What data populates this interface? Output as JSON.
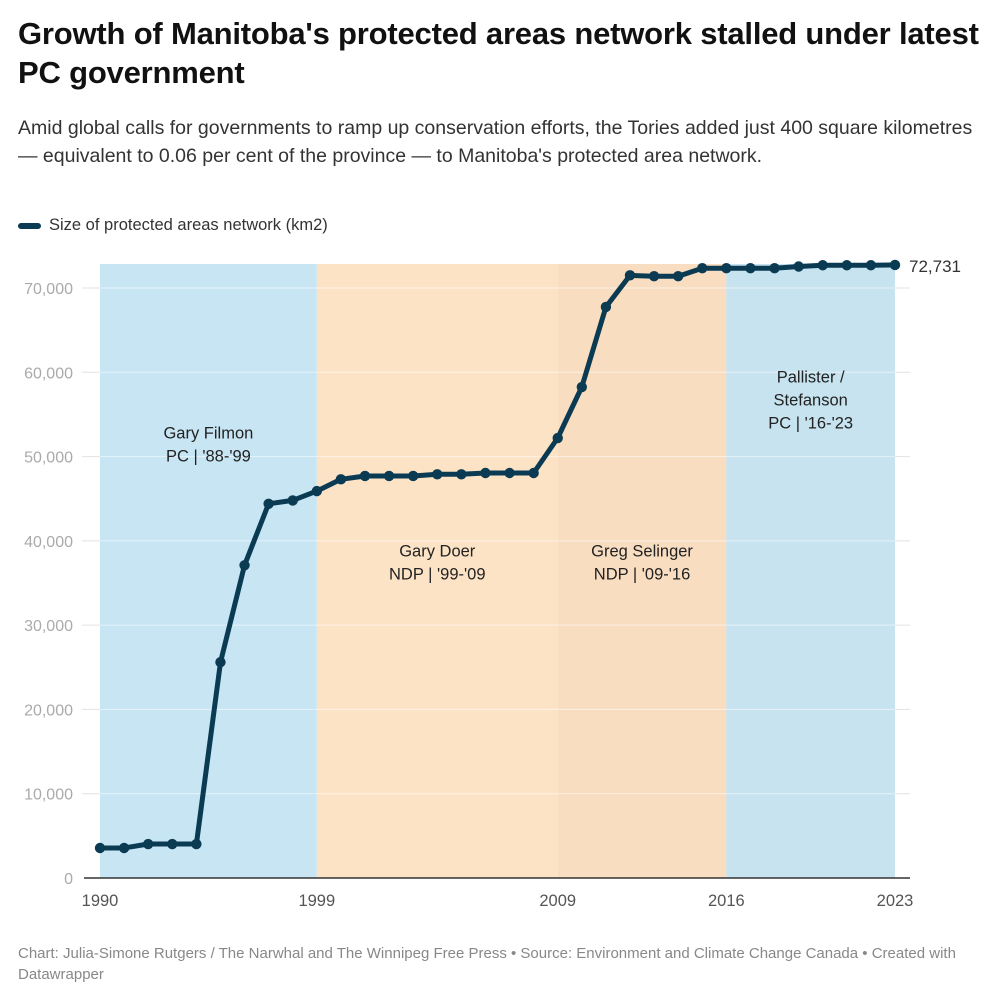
{
  "header": {
    "title": "Growth of Manitoba's protected areas network stalled under latest PC government",
    "subtitle": "Amid global calls for governments to ramp up conservation efforts, the Tories added just 400 square kilometres — equivalent to 0.06 per cent of the province — to Manitoba's protected area network."
  },
  "legend": {
    "label": "Size of protected areas network (km2)",
    "color": "#0b3a53"
  },
  "footer": {
    "text": "Chart: Julia-Simone Rutgers / The Narwhal and The Winnipeg Free Press • Source: Environment and Climate Change Canada • Created with Datawrapper"
  },
  "chart_data": {
    "type": "line",
    "title": "Growth of Manitoba's protected areas network stalled under latest PC government",
    "xlabel": "",
    "ylabel": "",
    "xlim": [
      1990,
      2023
    ],
    "ylim": [
      0,
      72731
    ],
    "grid": true,
    "legend_position": "top-left",
    "x_ticks": [
      1990,
      1999,
      2009,
      2016,
      2023
    ],
    "y_ticks": [
      0,
      10000,
      20000,
      30000,
      40000,
      50000,
      60000,
      70000
    ],
    "y_tick_labels": [
      "0",
      "10,000",
      "20,000",
      "30,000",
      "40,000",
      "50,000",
      "60,000",
      "70,000"
    ],
    "series": [
      {
        "name": "Size of protected areas network (km2)",
        "color": "#0b3a53",
        "x": [
          1990,
          1991,
          1992,
          1993,
          1994,
          1995,
          1996,
          1997,
          1998,
          1999,
          2000,
          2001,
          2002,
          2003,
          2004,
          2005,
          2006,
          2007,
          2008,
          2009,
          2010,
          2011,
          2012,
          2013,
          2014,
          2015,
          2016,
          2017,
          2018,
          2019,
          2020,
          2021,
          2022,
          2023
        ],
        "values": [
          3560,
          3560,
          4030,
          4030,
          4030,
          25600,
          37100,
          44400,
          44800,
          45900,
          47300,
          47700,
          47700,
          47700,
          47900,
          47900,
          48050,
          48050,
          48050,
          52200,
          58250,
          67750,
          71500,
          71400,
          71400,
          72350,
          72350,
          72350,
          72350,
          72550,
          72700,
          72700,
          72700,
          72731
        ]
      }
    ],
    "end_label": "72,731",
    "bands": [
      {
        "start": 1990,
        "end": 1999,
        "label_lines": [
          "Gary Filmon",
          "PC | '88-'99"
        ],
        "color": "#c7e5f3",
        "label_value": 51500
      },
      {
        "start": 1999,
        "end": 2009,
        "label_lines": [
          "Gary Doer",
          "NDP | '99-'09"
        ],
        "color": "#fde3c6",
        "label_value": 37500
      },
      {
        "start": 2009,
        "end": 2016,
        "label_lines": [
          "Greg Selinger",
          "NDP | '09-'16"
        ],
        "color": "#f9ddc0",
        "label_value": 37500
      },
      {
        "start": 2016,
        "end": 2023,
        "label_lines": [
          "Pallister /",
          "Stefanson",
          "PC | '16-'23"
        ],
        "color": "#c6e3ef",
        "label_value": 56800
      }
    ]
  }
}
